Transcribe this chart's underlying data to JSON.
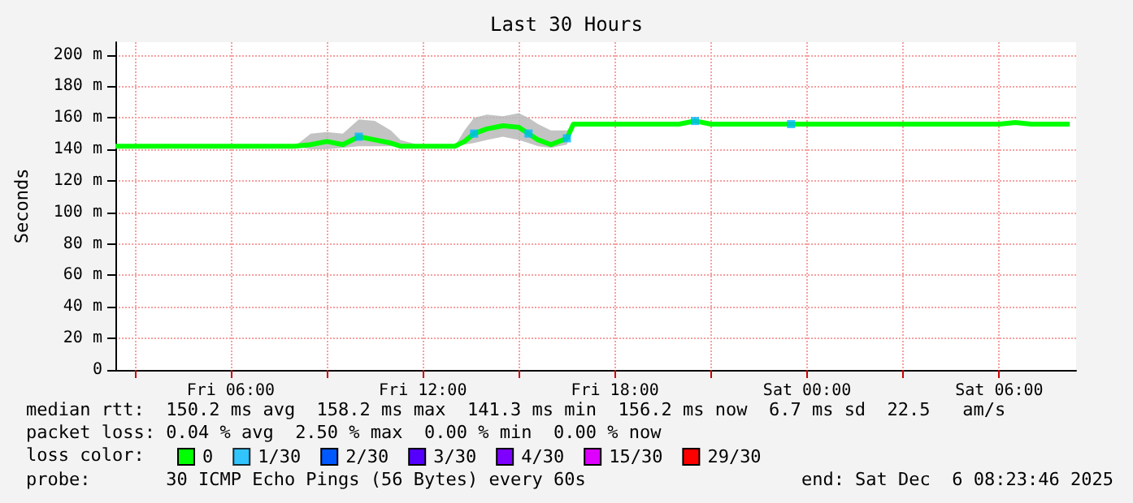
{
  "chart_data": {
    "type": "line",
    "title": "Last 30 Hours",
    "ylabel": "Seconds",
    "x": [
      "2025-12-05T02:24",
      "2025-12-05T03:00",
      "2025-12-05T04:00",
      "2025-12-05T05:00",
      "2025-12-05T06:00",
      "2025-12-05T07:00",
      "2025-12-05T08:00",
      "2025-12-05T08:30",
      "2025-12-05T09:00",
      "2025-12-05T09:30",
      "2025-12-05T10:00",
      "2025-12-05T10:30",
      "2025-12-05T11:00",
      "2025-12-05T11:18",
      "2025-12-05T12:00",
      "2025-12-05T13:00",
      "2025-12-05T13:18",
      "2025-12-05T13:36",
      "2025-12-05T14:00",
      "2025-12-05T14:30",
      "2025-12-05T15:00",
      "2025-12-05T15:18",
      "2025-12-05T15:36",
      "2025-12-05T16:00",
      "2025-12-05T16:30",
      "2025-12-05T16:42",
      "2025-12-05T17:00",
      "2025-12-05T18:00",
      "2025-12-05T19:00",
      "2025-12-05T20:00",
      "2025-12-05T20:30",
      "2025-12-05T21:00",
      "2025-12-05T22:00",
      "2025-12-05T23:00",
      "2025-12-05T23:30",
      "2025-12-06T00:00",
      "2025-12-06T01:00",
      "2025-12-06T02:00",
      "2025-12-06T03:00",
      "2025-12-06T04:00",
      "2025-12-06T05:00",
      "2025-12-06T06:00",
      "2025-12-06T06:30",
      "2025-12-06T07:00",
      "2025-12-06T07:30",
      "2025-12-06T08:00",
      "2025-12-06T08:12"
    ],
    "series": [
      {
        "name": "0",
        "color": "#00ff00",
        "values": [
          142,
          142,
          142,
          142,
          142,
          142,
          142,
          143,
          145,
          143,
          148,
          146,
          144,
          142,
          142,
          142,
          145,
          150,
          153,
          155,
          154,
          150,
          146,
          143,
          147,
          156,
          156,
          156,
          156,
          156,
          158,
          156,
          156,
          156,
          156,
          156,
          156,
          156,
          156,
          156,
          156,
          156,
          157,
          156,
          156,
          156,
          156
        ],
        "lower": [
          142,
          142,
          142,
          142,
          142,
          142,
          142,
          140,
          140,
          141,
          142,
          142,
          142,
          142,
          142,
          142,
          143,
          144,
          146,
          148,
          146,
          144,
          142,
          141,
          143,
          156,
          156,
          156,
          156,
          156,
          158,
          156,
          156,
          156,
          156,
          156,
          156,
          156,
          156,
          156,
          156,
          156,
          156,
          156,
          156,
          156,
          156
        ],
        "upper": [
          142,
          142,
          142,
          142,
          142,
          142,
          142,
          150,
          151,
          150,
          159,
          158,
          152,
          146,
          142,
          142,
          152,
          160,
          162,
          161,
          163,
          160,
          156,
          152,
          152,
          156,
          156,
          156,
          156,
          156,
          158,
          156,
          156,
          156,
          156,
          156,
          156,
          156,
          156,
          156,
          156,
          156,
          158,
          156,
          156,
          156,
          156
        ]
      },
      {
        "name": "1/30",
        "color": "#00b8ff",
        "type": "scatter",
        "marker": "square",
        "x": [
          "2025-12-05T10:00",
          "2025-12-05T13:36",
          "2025-12-05T15:18",
          "2025-12-05T16:30",
          "2025-12-05T20:30",
          "2025-12-05T23:30"
        ],
        "values": [
          148,
          150,
          150,
          147,
          158,
          156
        ]
      },
      {
        "name": "2/30",
        "color": "#0059ff",
        "values": [
          null,
          null,
          null,
          null,
          null,
          null,
          null,
          null,
          null,
          null,
          null,
          null,
          null,
          null,
          null,
          null,
          null,
          null,
          null,
          null,
          null,
          null,
          null,
          null,
          null,
          null,
          null,
          null,
          null,
          null,
          null,
          null,
          null,
          null,
          null,
          null,
          null,
          null,
          null,
          null,
          null,
          null,
          null,
          null,
          null,
          null,
          null
        ]
      },
      {
        "name": "3/30",
        "color": "#5500ff",
        "values": [
          null,
          null,
          null,
          null,
          null,
          null,
          null,
          null,
          null,
          null,
          null,
          null,
          null,
          null,
          null,
          null,
          null,
          null,
          null,
          null,
          null,
          null,
          null,
          null,
          null,
          null,
          null,
          null,
          null,
          null,
          null,
          null,
          null,
          null,
          null,
          null,
          null,
          null,
          null,
          null,
          null,
          null,
          null,
          null,
          null,
          null,
          null
        ]
      },
      {
        "name": "4/30",
        "color": "#7e00ff",
        "values": [
          null,
          null,
          null,
          null,
          null,
          null,
          null,
          null,
          null,
          null,
          null,
          null,
          null,
          null,
          null,
          null,
          null,
          null,
          null,
          null,
          null,
          null,
          null,
          null,
          null,
          null,
          null,
          null,
          null,
          null,
          null,
          null,
          null,
          null,
          null,
          null,
          null,
          null,
          null,
          null,
          null,
          null,
          null,
          null,
          null,
          null,
          null
        ]
      },
      {
        "name": "15/30",
        "color": "#dd00ff",
        "values": [
          null,
          null,
          null,
          null,
          null,
          null,
          null,
          null,
          null,
          null,
          null,
          null,
          null,
          null,
          null,
          null,
          null,
          null,
          null,
          null,
          null,
          null,
          null,
          null,
          null,
          null,
          null,
          null,
          null,
          null,
          null,
          null,
          null,
          null,
          null,
          null,
          null,
          null,
          null,
          null,
          null,
          null,
          null,
          null,
          null,
          null,
          null
        ]
      },
      {
        "name": "29/30",
        "color": "#ff0000",
        "values": [
          null,
          null,
          null,
          null,
          null,
          null,
          null,
          null,
          null,
          null,
          null,
          null,
          null,
          null,
          null,
          null,
          null,
          null,
          null,
          null,
          null,
          null,
          null,
          null,
          null,
          null,
          null,
          null,
          null,
          null,
          null,
          null,
          null,
          null,
          null,
          null,
          null,
          null,
          null,
          null,
          null,
          null,
          null,
          null,
          null,
          null,
          null
        ]
      }
    ],
    "legend_title": "loss color:",
    "legend": "bottom",
    "xlim": [
      "2025-12-05T02:24",
      "2025-12-06T08:24"
    ],
    "xticks": [
      {
        "value": "2025-12-05T03:00",
        "label": null
      },
      {
        "value": "2025-12-05T06:00",
        "label": "Fri 06:00"
      },
      {
        "value": "2025-12-05T09:00",
        "label": null
      },
      {
        "value": "2025-12-05T12:00",
        "label": "Fri 12:00"
      },
      {
        "value": "2025-12-05T15:00",
        "label": null
      },
      {
        "value": "2025-12-05T18:00",
        "label": "Fri 18:00"
      },
      {
        "value": "2025-12-05T21:00",
        "label": null
      },
      {
        "value": "2025-12-06T00:00",
        "label": "Sat 00:00"
      },
      {
        "value": "2025-12-06T03:00",
        "label": null
      },
      {
        "value": "2025-12-06T06:00",
        "label": "Sat 06:00"
      }
    ],
    "ylim": [
      0,
      208
    ],
    "yticks": [
      0,
      {
        "value": 20,
        "label": "20 m"
      },
      {
        "value": 40,
        "label": "40 m"
      },
      {
        "value": 60,
        "label": "60 m"
      },
      {
        "value": 80,
        "label": "80 m"
      },
      {
        "value": 100,
        "label": "100 m"
      },
      {
        "value": 120,
        "label": "120 m"
      },
      {
        "value": 140,
        "label": "140 m"
      },
      {
        "value": 160,
        "label": "160 m"
      },
      {
        "value": 180,
        "label": "180 m"
      },
      {
        "value": 200,
        "label": "200 m"
      }
    ],
    "grid": true,
    "annotations": [
      "median rtt:  150.2 ms avg  158.2 ms max  141.3 ms min  156.2 ms now  6.7 ms sd  22.5   am/s",
      "packet loss: 0.04 % avg  2.50 % max  0.00 % min  0.00 % now",
      "probe:       30 ICMP Echo Pings (56 Bytes) every 60s",
      "end: Sat Dec  6 08:23:46 2025"
    ]
  }
}
